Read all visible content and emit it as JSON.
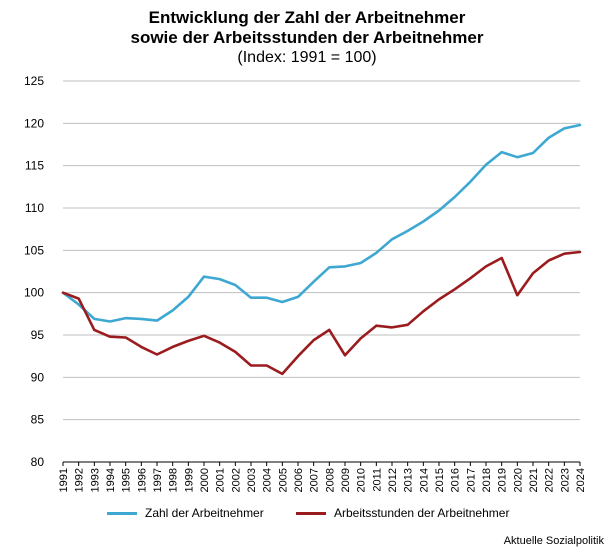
{
  "chart_data": {
    "type": "line",
    "title_line1": "Entwicklung der Zahl der Arbeitnehmer",
    "title_line2": "sowie der Arbeitsstunden der Arbeitnehmer",
    "subtitle": "(Index: 1991 = 100)",
    "xlabel": "",
    "ylabel": "",
    "ylim": [
      80,
      125
    ],
    "yticks": [
      80,
      85,
      90,
      95,
      100,
      105,
      110,
      115,
      120,
      125
    ],
    "grid": true,
    "legend_position": "bottom",
    "x": [
      "1991",
      "1992",
      "1993",
      "1994",
      "1995",
      "1996",
      "1997",
      "1998",
      "1999",
      "2000",
      "2001",
      "2002",
      "2003",
      "2004",
      "2005",
      "2006",
      "2007",
      "2008",
      "2009",
      "2010",
      "2011",
      "2012",
      "2013",
      "2014",
      "2015",
      "2016",
      "2017",
      "2018",
      "2019",
      "2020",
      "2021",
      "2022",
      "2023",
      "2024"
    ],
    "series": [
      {
        "name": "Zahl der Arbeitnehmer",
        "color": "#3ea8d2",
        "values": [
          100.0,
          98.6,
          96.9,
          96.6,
          97.0,
          96.9,
          96.7,
          97.9,
          99.5,
          101.9,
          101.6,
          100.9,
          99.4,
          99.4,
          98.9,
          99.5,
          101.3,
          103.0,
          103.1,
          103.5,
          104.7,
          106.3,
          107.3,
          108.4,
          109.7,
          111.3,
          113.1,
          115.1,
          116.6,
          116.0,
          116.5,
          118.3,
          119.4,
          119.8
        ]
      },
      {
        "name": "Arbeitsstunden der Arbeitnehmer",
        "color": "#9b1c1f",
        "values": [
          100.0,
          99.3,
          95.6,
          94.8,
          94.7,
          93.6,
          92.7,
          93.6,
          94.3,
          94.9,
          94.1,
          93.0,
          91.4,
          91.4,
          90.4,
          92.5,
          94.4,
          95.6,
          92.6,
          94.6,
          96.1,
          95.9,
          96.2,
          97.8,
          99.2,
          100.4,
          101.7,
          103.1,
          104.1,
          99.7,
          102.3,
          103.8,
          104.6,
          104.8
        ]
      }
    ],
    "source": "Aktuelle Sozialpolitik"
  }
}
